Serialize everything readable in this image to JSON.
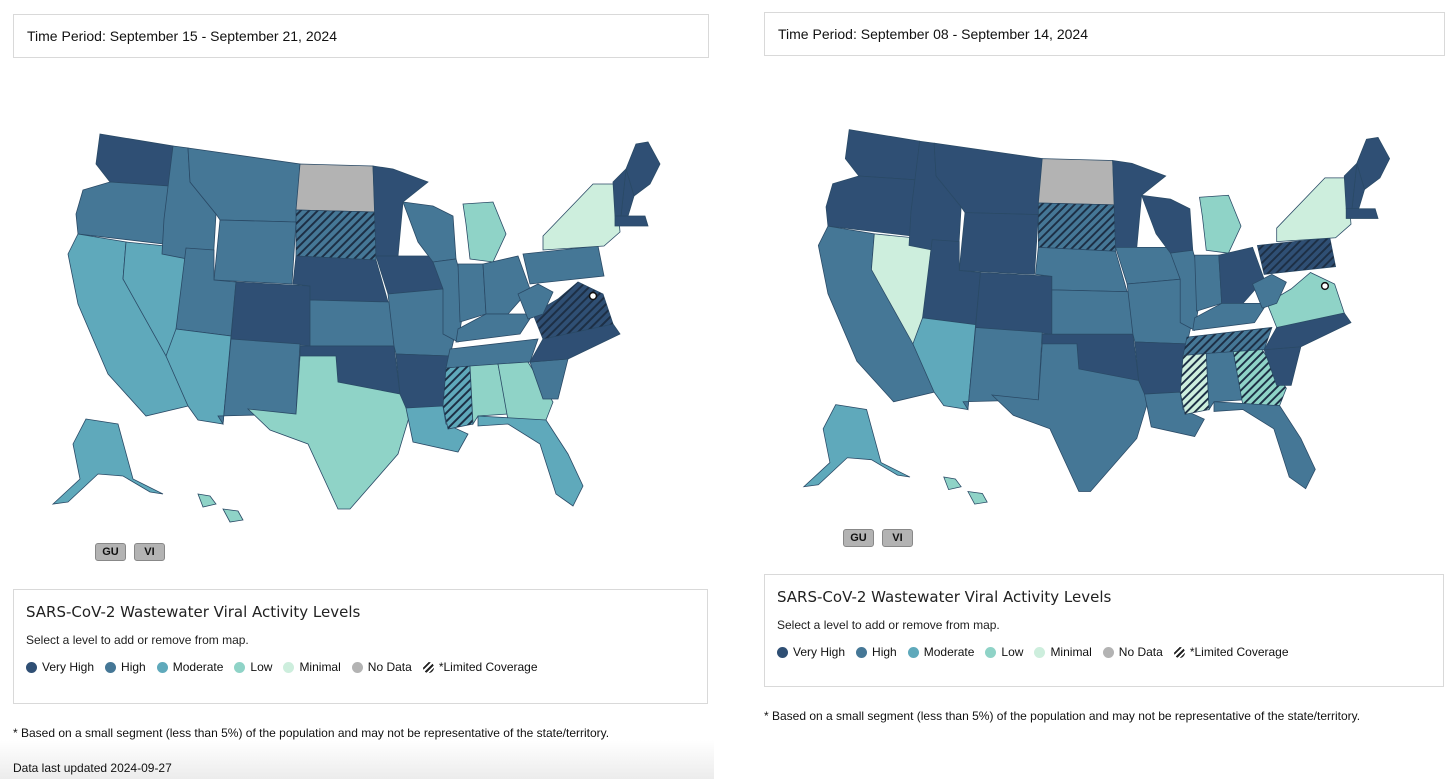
{
  "left": {
    "time_period": "Time Period: September 15 - September 21, 2024",
    "territories": [
      "GU",
      "VI"
    ],
    "legend": {
      "title": "SARS-CoV-2 Wastewater Viral Activity Levels",
      "instruction": "Select a level to add or remove from map.",
      "items": [
        {
          "label": "Very High",
          "color": "#2f4f74"
        },
        {
          "label": "High",
          "color": "#457796"
        },
        {
          "label": "Moderate",
          "color": "#5fa9bb"
        },
        {
          "label": "Low",
          "color": "#8fd3c7"
        },
        {
          "label": "Minimal",
          "color": "#cdeedd"
        },
        {
          "label": "No Data",
          "color": "#b3b3b3"
        },
        {
          "label": "*Limited Coverage",
          "color": "hatch"
        }
      ]
    },
    "footnote": "* Based on a small segment (less than 5%) of the population and may not be representative of the state/territory.",
    "updated": "Data last updated 2024-09-27"
  },
  "right": {
    "time_period": "Time Period: September 08 - September 14, 2024",
    "territories": [
      "GU",
      "VI"
    ],
    "legend": {
      "title": "SARS-CoV-2 Wastewater Viral Activity Levels",
      "instruction": "Select a level to add or remove from map.",
      "items": [
        {
          "label": "Very High",
          "color": "#2f4f74"
        },
        {
          "label": "High",
          "color": "#457796"
        },
        {
          "label": "Moderate",
          "color": "#5fa9bb"
        },
        {
          "label": "Low",
          "color": "#8fd3c7"
        },
        {
          "label": "Minimal",
          "color": "#cdeedd"
        },
        {
          "label": "No Data",
          "color": "#b3b3b3"
        },
        {
          "label": "*Limited Coverage",
          "color": "hatch"
        }
      ]
    },
    "footnote": "* Based on a small segment (less than 5%) of the population and may not be representative of the state/territory."
  },
  "map_levels": {
    "left": {
      "WA": "Very High",
      "OR": "High",
      "CA": "Moderate",
      "NV": "Moderate",
      "ID": "High",
      "MT": "High",
      "WY": "High",
      "UT": "High",
      "AZ": "Moderate",
      "CO": "Very High",
      "NM": "High",
      "ND": "No Data",
      "SD": "High*",
      "NE": "Very High",
      "KS": "High",
      "OK": "Very High",
      "TX": "Low",
      "MN": "Very High",
      "IA": "Very High",
      "MO": "High",
      "AR": "Very High",
      "LA": "Moderate",
      "WI": "High",
      "IL": "High",
      "MI": "Low",
      "IN": "High",
      "OH": "High",
      "KY": "High",
      "TN": "High",
      "MS": "Moderate*",
      "AL": "Low",
      "GA": "Low",
      "FL": "Moderate",
      "SC": "High",
      "NC": "Very High",
      "VA": "Very High*",
      "WV": "High",
      "PA": "High",
      "NY": "Minimal",
      "ME": "Very High",
      "NH": "Very High",
      "VT": "Very High",
      "MA": "Very High",
      "AK": "Moderate",
      "HI": "Low"
    },
    "right": {
      "WA": "Very High",
      "OR": "Very High",
      "CA": "High",
      "NV": "Minimal",
      "ID": "Very High",
      "MT": "Very High",
      "WY": "Very High",
      "UT": "Very High",
      "AZ": "Moderate",
      "CO": "Very High",
      "NM": "High",
      "ND": "No Data",
      "SD": "High*",
      "NE": "High",
      "KS": "High",
      "OK": "Very High",
      "TX": "High",
      "MN": "Very High",
      "IA": "High",
      "MO": "High",
      "AR": "Very High",
      "LA": "High",
      "WI": "Very High",
      "IL": "High",
      "MI": "Low",
      "IN": "High",
      "OH": "Very High",
      "KY": "High",
      "TN": "High*",
      "MS": "Minimal*",
      "AL": "High",
      "GA": "Low*",
      "FL": "High",
      "SC": "Very High",
      "NC": "Very High",
      "VA": "Low",
      "WV": "High",
      "PA": "Very High*",
      "NY": "Minimal",
      "ME": "Very High",
      "NH": "Very High",
      "VT": "Very High",
      "MA": "Very High",
      "AK": "Moderate",
      "HI": "Low"
    }
  }
}
